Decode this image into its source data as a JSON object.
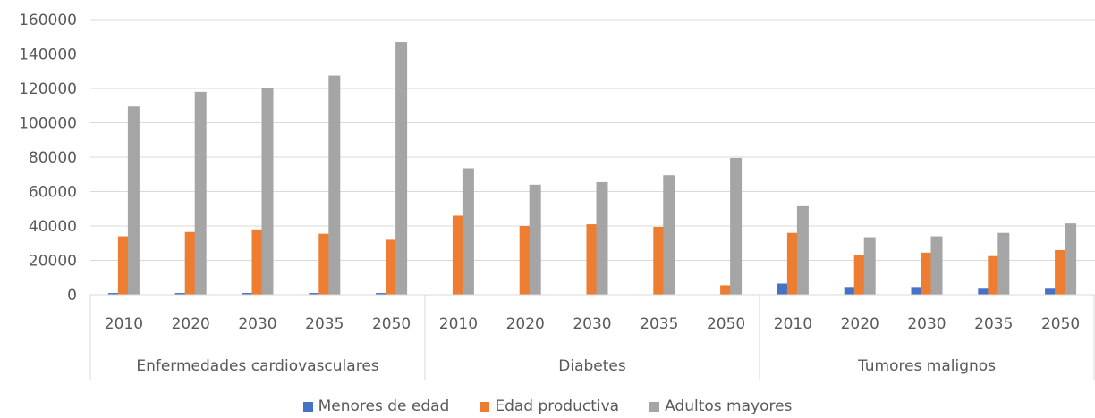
{
  "chart_data": {
    "type": "bar",
    "title": "",
    "xlabel": "",
    "ylabel": "",
    "ylim": [
      0,
      160000
    ],
    "yticks": [
      0,
      20000,
      40000,
      60000,
      80000,
      100000,
      120000,
      140000,
      160000
    ],
    "ytick_labels": [
      "0",
      "20000",
      "40000",
      "60000",
      "80000",
      "100000",
      "120000",
      "140000",
      "160000"
    ],
    "grid": true,
    "legend_position": "bottom",
    "groups": [
      {
        "name": "Enfermedades cardiovasculares",
        "categories": [
          "2010",
          "2020",
          "2030",
          "2035",
          "2050"
        ]
      },
      {
        "name": "Diabetes",
        "categories": [
          "2010",
          "2020",
          "2030",
          "2035",
          "2050"
        ]
      },
      {
        "name": "Tumores malignos",
        "categories": [
          "2010",
          "2020",
          "2030",
          "2035",
          "2050"
        ]
      }
    ],
    "series": [
      {
        "name": "Menores de edad",
        "color": "#4472C4",
        "values": [
          1000,
          1000,
          1000,
          1000,
          1000,
          0,
          0,
          0,
          0,
          0,
          6500,
          4500,
          4500,
          3500,
          3500
        ]
      },
      {
        "name": "Edad productiva",
        "color": "#ED7D31",
        "values": [
          34000,
          36500,
          38000,
          35500,
          32000,
          46000,
          40000,
          41000,
          39500,
          5500,
          36000,
          23000,
          24500,
          22500,
          26000
        ]
      },
      {
        "name": "Adultos mayores",
        "color": "#A5A5A5",
        "values": [
          109500,
          118000,
          120500,
          127500,
          147000,
          73500,
          64000,
          65500,
          69500,
          79500,
          51500,
          33500,
          34000,
          36000,
          41500
        ]
      }
    ]
  }
}
